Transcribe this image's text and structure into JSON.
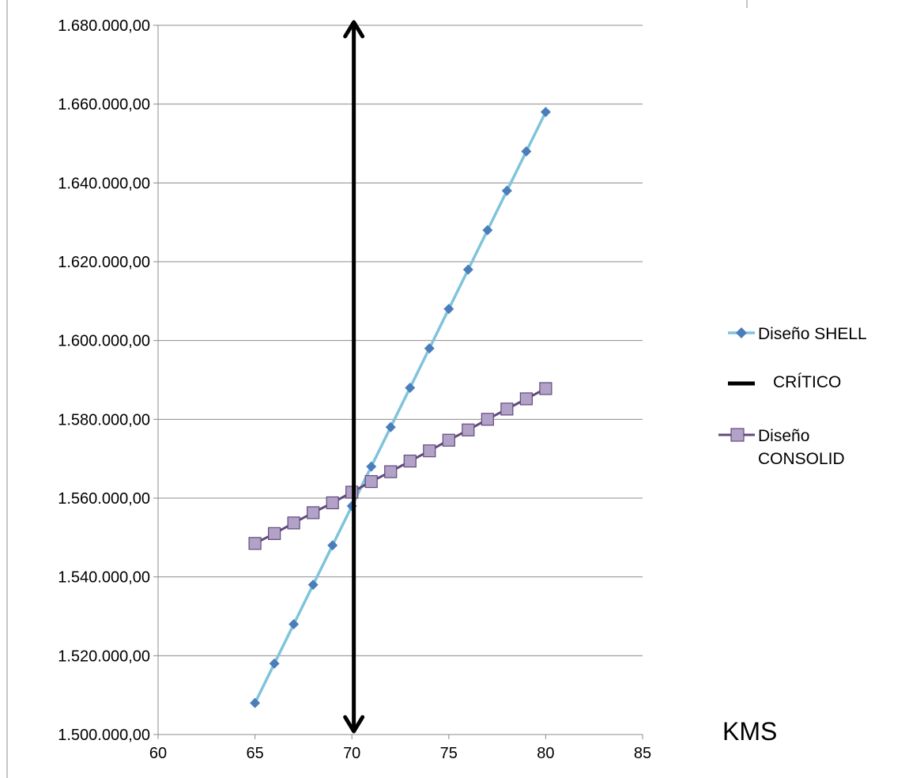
{
  "chart_data": {
    "type": "line",
    "title": "",
    "xlabel": "KMS",
    "ylabel": "",
    "xlim": [
      60,
      85
    ],
    "ylim": [
      1500000,
      1680000
    ],
    "x_ticks": [
      60,
      65,
      70,
      75,
      80,
      85
    ],
    "y_ticks": [
      1500000,
      1520000,
      1540000,
      1560000,
      1580000,
      1600000,
      1620000,
      1640000,
      1660000,
      1680000
    ],
    "y_tick_labels": [
      "1.500.000,00",
      "1.520.000,00",
      "1.540.000,00",
      "1.560.000,00",
      "1.580.000,00",
      "1.600.000,00",
      "1.620.000,00",
      "1.640.000,00",
      "1.660.000,00",
      "1.680.000,00"
    ],
    "x_tick_labels": [
      "60",
      "65",
      "70",
      "75",
      "80",
      "85"
    ],
    "grid": "horizontal",
    "legend_position": "right",
    "series": [
      {
        "name": "Diseño SHELL",
        "color": "#7fc3dc",
        "marker_color": "#4a7ebb",
        "marker": "diamond",
        "x": [
          65,
          66,
          67,
          68,
          69,
          70,
          71,
          72,
          73,
          74,
          75,
          76,
          77,
          78,
          79,
          80
        ],
        "values": [
          1508000,
          1518000,
          1528000,
          1538000,
          1548000,
          1558000,
          1568000,
          1578000,
          1588000,
          1598000,
          1608000,
          1618000,
          1628000,
          1638000,
          1648000,
          1658000
        ]
      },
      {
        "name": "Diseño CONSOLID",
        "legend_lines": [
          "Diseño",
          "CONSOLID"
        ],
        "color": "#604a7b",
        "marker_color": "#b3a2c7",
        "marker": "square",
        "x": [
          65,
          66,
          67,
          68,
          69,
          70,
          71,
          72,
          73,
          74,
          75,
          76,
          77,
          78,
          79,
          80
        ],
        "values": [
          1548500,
          1551000,
          1553700,
          1556300,
          1558800,
          1561500,
          1564200,
          1566700,
          1569400,
          1572000,
          1574700,
          1577300,
          1580000,
          1582600,
          1585200,
          1587800
        ]
      }
    ],
    "critical_line": {
      "name": "CRÍTICO",
      "x": 70.1,
      "y_range": [
        1500000,
        1680000
      ],
      "color": "#000000"
    }
  }
}
